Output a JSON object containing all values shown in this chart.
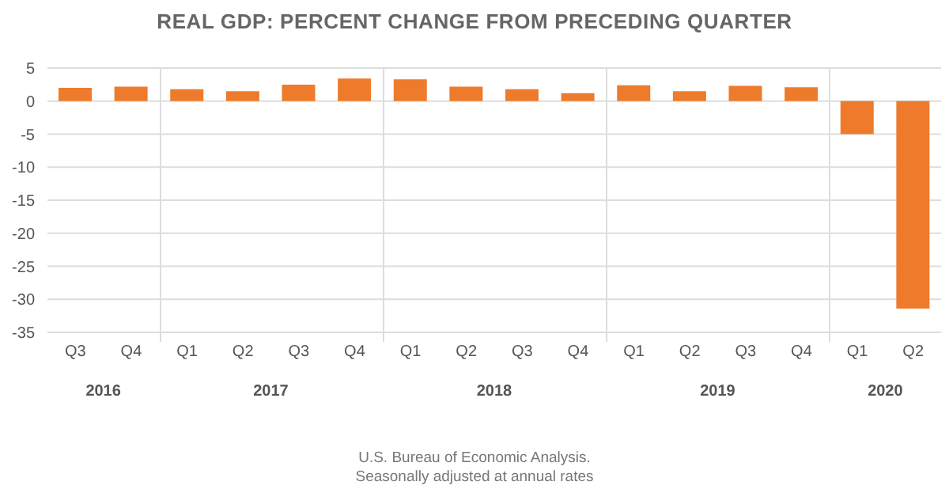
{
  "chart_data": {
    "type": "bar",
    "title": "REAL GDP: PERCENT CHANGE FROM PRECEDING QUARTER",
    "categories": [
      "Q3",
      "Q4",
      "Q1",
      "Q2",
      "Q3",
      "Q4",
      "Q1",
      "Q2",
      "Q3",
      "Q4",
      "Q1",
      "Q2",
      "Q3",
      "Q4",
      "Q1",
      "Q2"
    ],
    "values": [
      2.0,
      2.2,
      1.8,
      1.5,
      2.5,
      3.4,
      3.3,
      2.2,
      1.8,
      1.2,
      2.4,
      1.5,
      2.3,
      2.1,
      -5.0,
      -31.4
    ],
    "color": "#ee7b2c",
    "ylim": [
      -35,
      5
    ],
    "yticks": [
      -35,
      -30,
      -25,
      -20,
      -15,
      -10,
      -5,
      0,
      5
    ],
    "grid": "y",
    "annotations": [
      {
        "text": "2016"
      },
      {
        "text": "2017"
      },
      {
        "text": "2018"
      },
      {
        "text": "2019"
      },
      {
        "text": "2020"
      },
      "U.S. Bureau of Economic Analysis.",
      "Seasonally adjusted at annual rates"
    ]
  }
}
